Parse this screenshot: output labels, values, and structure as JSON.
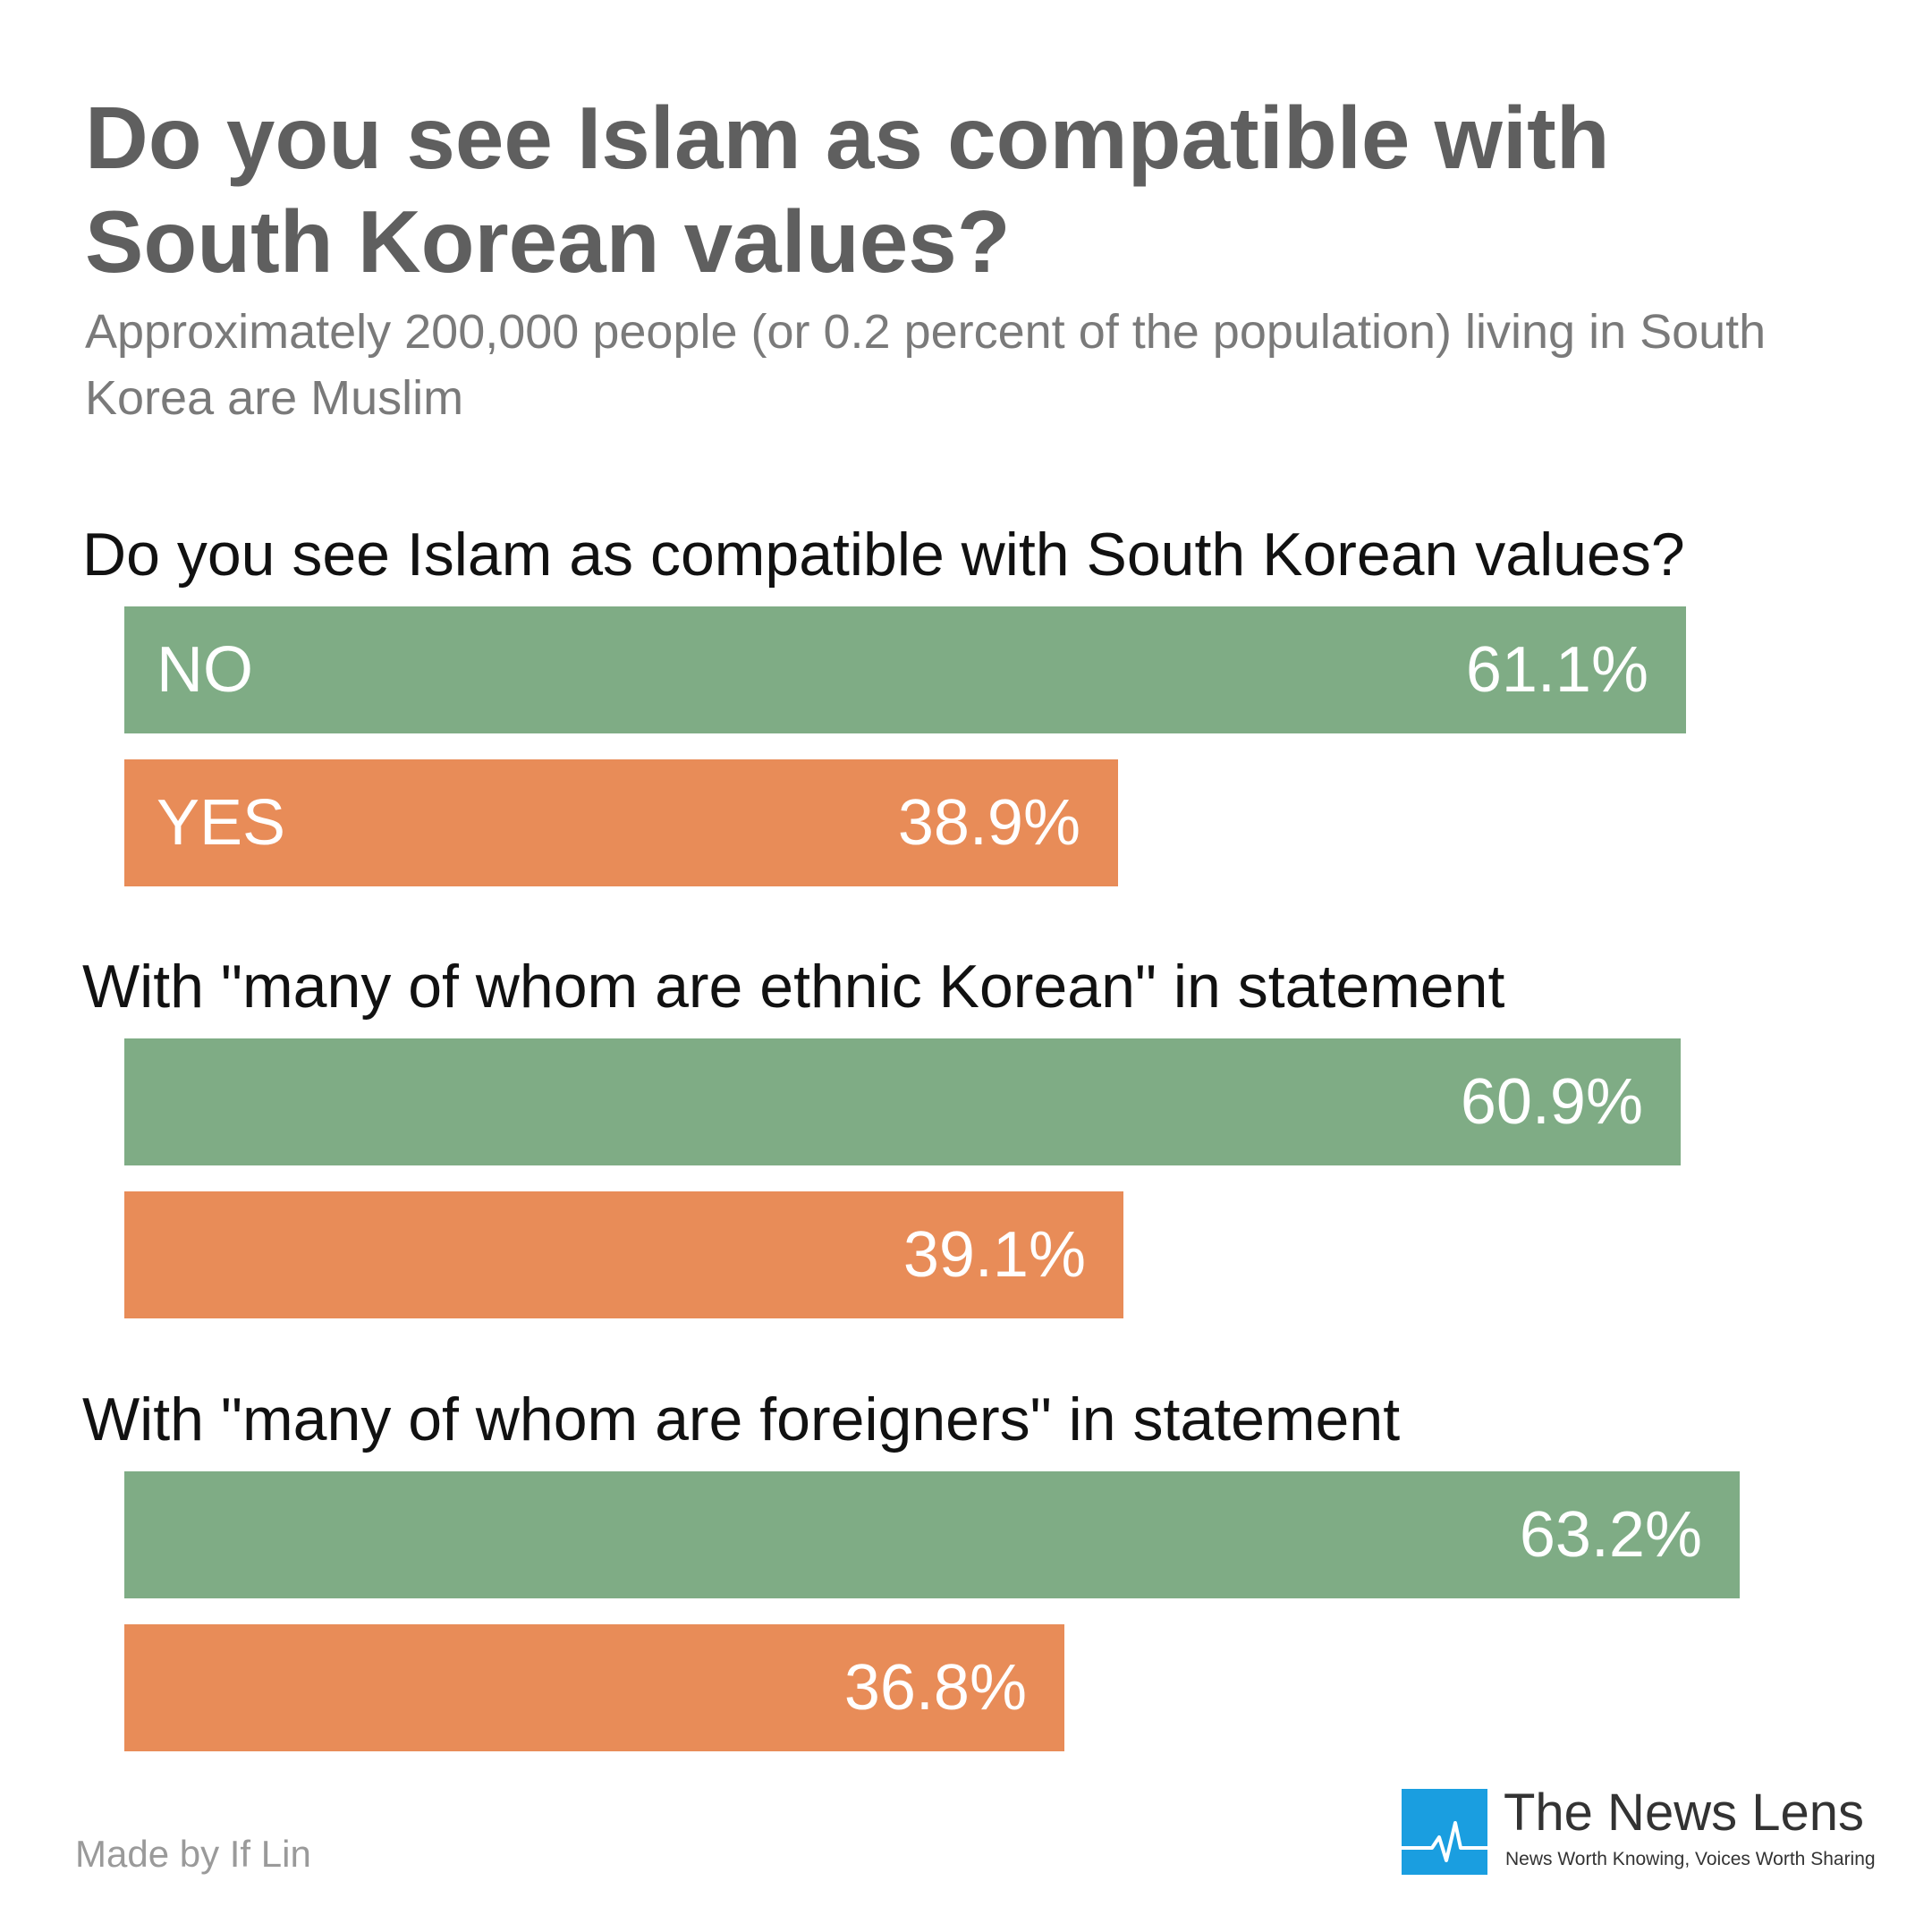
{
  "header": {
    "title": "Do you see Islam as compatible with South Korean values?",
    "subtitle": "Approximately 200,000 people (or 0.2 percent of the population) living in South Korea are Muslim"
  },
  "chart_data": {
    "type": "bar",
    "orientation": "horizontal",
    "title": "Do you see Islam as compatible with South Korean values?",
    "subtitle": "Approximately 200,000 people (or 0.2 percent of the population) living in South Korea are Muslim",
    "unit": "%",
    "xlim": [
      0,
      70
    ],
    "colors": {
      "NO": "#7fac85",
      "YES": "#e88c58"
    },
    "groups": [
      {
        "label": "Do you see Islam as compatible with South Korean values?",
        "bars": [
          {
            "category": "NO",
            "show_category": true,
            "value": 61.1,
            "value_label": "61.1%"
          },
          {
            "category": "YES",
            "show_category": true,
            "value": 38.9,
            "value_label": "38.9%"
          }
        ]
      },
      {
        "label": "With \"many of whom are ethnic Korean\" in statement",
        "bars": [
          {
            "category": "NO",
            "show_category": false,
            "value": 60.9,
            "value_label": "60.9%"
          },
          {
            "category": "YES",
            "show_category": false,
            "value": 39.1,
            "value_label": "39.1%"
          }
        ]
      },
      {
        "label": "With \"many of whom are foreigners\" in statement",
        "bars": [
          {
            "category": "NO",
            "show_category": false,
            "value": 63.2,
            "value_label": "63.2%"
          },
          {
            "category": "YES",
            "show_category": false,
            "value": 36.8,
            "value_label": "36.8%"
          }
        ]
      }
    ]
  },
  "footer": {
    "credit": "Made by If Lin",
    "brand_name": "The News Lens",
    "brand_tagline": "News Worth Knowing, Voices Worth Sharing",
    "brand_icon": "pulse-line-icon",
    "brand_color": "#1a9ee0"
  }
}
